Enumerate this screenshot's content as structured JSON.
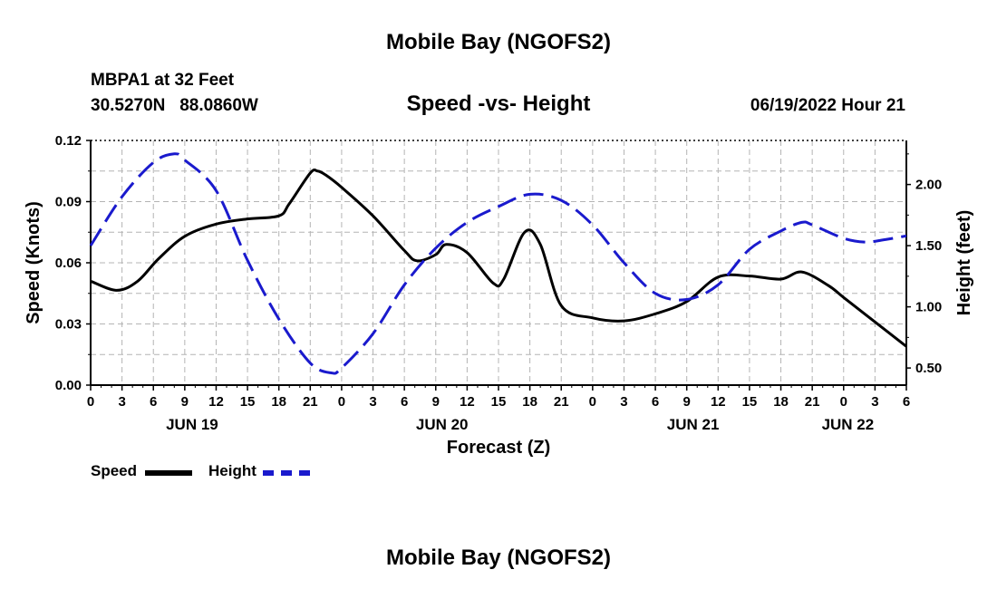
{
  "header": {
    "title": "Mobile Bay (NGOFS2)",
    "station": "MBPA1 at 32 Feet",
    "coords": "30.5270N   88.0860W",
    "subtitle": "Speed -vs- Height",
    "datetime": "06/19/2022 Hour 21"
  },
  "footer": {
    "title": "Mobile Bay (NGOFS2)"
  },
  "legend": {
    "speed_label": "Speed",
    "height_label": "Height"
  },
  "colors": {
    "speed": "#000000",
    "height": "#1a1acd",
    "grid": "#b4b4b4"
  },
  "chart_data": {
    "type": "line",
    "xlabel": "Forecast (Z)",
    "ylabel_left": "Speed (Knots)",
    "ylabel_right": "Height (feet)",
    "x_unit": "hours from 2022-06-18 00Z",
    "xlim": [
      0,
      78
    ],
    "ylim_left": [
      0,
      0.12
    ],
    "ylim_right": [
      0.36,
      2.36
    ],
    "yticks_left": [
      "0.00",
      "0.03",
      "0.06",
      "0.09",
      "0.12"
    ],
    "yticks_right": [
      "0.50",
      "1.00",
      "1.50",
      "2.00"
    ],
    "xtick_labels": [
      "0",
      "3",
      "6",
      "9",
      "12",
      "15",
      "18",
      "21",
      "0",
      "3",
      "6",
      "9",
      "12",
      "15",
      "18",
      "21",
      "0",
      "3",
      "6",
      "9",
      "12",
      "15",
      "18",
      "21",
      "0",
      "3",
      "6"
    ],
    "date_labels": [
      {
        "label": "JUN 19",
        "hour": 9.7
      },
      {
        "label": "JUN 20",
        "hour": 33.6
      },
      {
        "label": "JUN 21",
        "hour": 57.6
      },
      {
        "label": "JUN 22",
        "hour": 72.4
      }
    ],
    "grid": true,
    "series": [
      {
        "name": "Speed",
        "axis": "left",
        "x": [
          0,
          2.5,
          4.5,
          6.5,
          9,
          12,
          15,
          18,
          19,
          21,
          21.7,
          22.5,
          24,
          27,
          30,
          31.2,
          33,
          34,
          36,
          38.5,
          39.5,
          41.5,
          43,
          45,
          48,
          51,
          54,
          57,
          60,
          63,
          66,
          68,
          70.5,
          72,
          75,
          78
        ],
        "y": [
          0.051,
          0.0465,
          0.051,
          0.062,
          0.073,
          0.079,
          0.0815,
          0.083,
          0.089,
          0.104,
          0.105,
          0.103,
          0.097,
          0.083,
          0.066,
          0.061,
          0.064,
          0.069,
          0.065,
          0.05,
          0.052,
          0.075,
          0.069,
          0.039,
          0.033,
          0.0315,
          0.035,
          0.041,
          0.053,
          0.0535,
          0.052,
          0.0555,
          0.049,
          0.043,
          0.031,
          0.019
        ]
      },
      {
        "name": "Height",
        "axis": "right",
        "x": [
          0,
          3,
          6,
          8,
          9,
          12,
          15,
          18,
          21,
          23,
          24,
          27,
          30,
          33,
          36,
          39,
          42,
          45,
          48,
          51,
          54,
          57,
          60,
          63,
          66,
          68,
          69,
          72,
          74,
          76,
          78
        ],
        "y": [
          1.5,
          1.9,
          2.18,
          2.25,
          2.2,
          1.95,
          1.38,
          0.9,
          0.54,
          0.46,
          0.5,
          0.78,
          1.18,
          1.48,
          1.69,
          1.82,
          1.92,
          1.87,
          1.67,
          1.36,
          1.11,
          1.06,
          1.18,
          1.47,
          1.62,
          1.69,
          1.67,
          1.56,
          1.53,
          1.55,
          1.58
        ]
      }
    ]
  }
}
